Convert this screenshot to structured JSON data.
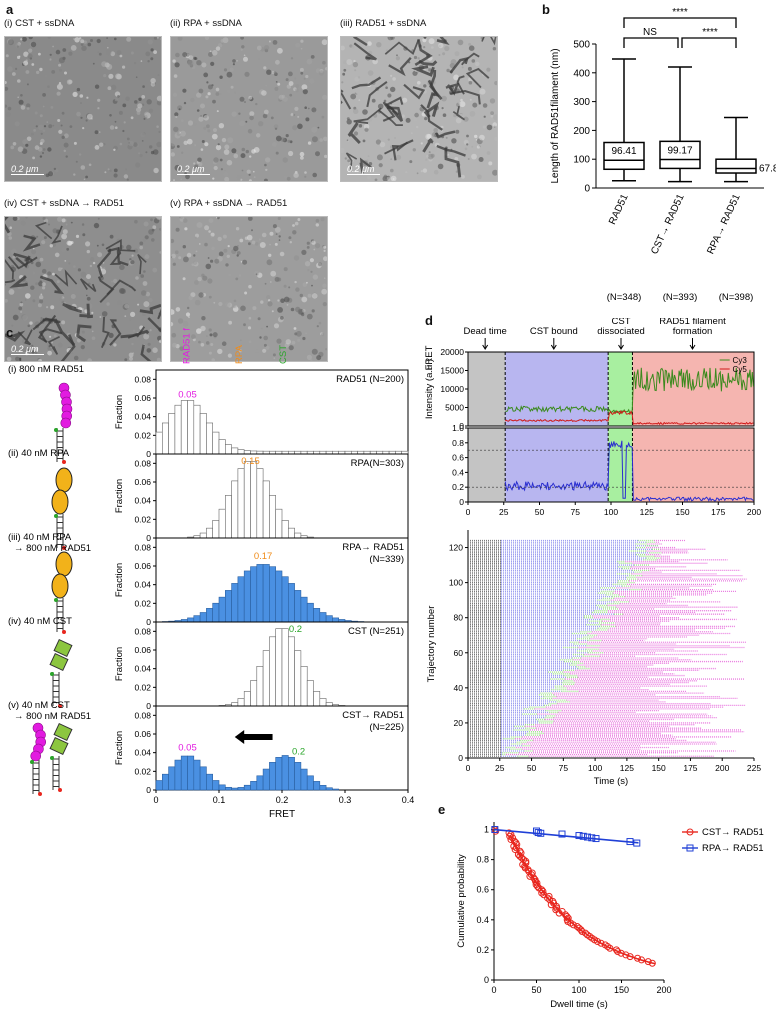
{
  "panel_labels": {
    "a": "a",
    "b": "b",
    "c": "c",
    "d": "d",
    "e": "e"
  },
  "micrographs": [
    {
      "label": "(i) CST + ssDNA",
      "scale": "0.2 μm",
      "tone": "#8a8a8a",
      "filaments": false
    },
    {
      "label": "(ii) RPA + ssDNA",
      "scale": "0.2 μm",
      "tone": "#9a9a9a",
      "filaments": false
    },
    {
      "label": "(iii) RAD51 + ssDNA",
      "scale": "0.2 μm",
      "tone": "#b4b4b4",
      "filaments": true
    },
    {
      "label": "(iv) CST + ssDNA → RAD51",
      "scale": "0.2 μm",
      "tone": "#8e8e8e",
      "filaments": true
    },
    {
      "label": "(v) RPA + ssDNA → RAD51",
      "scale": "",
      "tone": "#9d9d9d",
      "filaments": false
    }
  ],
  "panel_b": {
    "chart_data": {
      "type": "box",
      "ylabel": "Length of RAD51filament (nm)",
      "ylim": [
        0,
        500
      ],
      "yticks": [
        0,
        100,
        200,
        300,
        400,
        500
      ],
      "categories": [
        "RAD51",
        "CST→ RAD51",
        "RPA→ RAD51"
      ],
      "counts": [
        "(N=348)",
        "(N=393)",
        "(N=398)"
      ],
      "boxes": [
        {
          "min": 25,
          "q1": 65,
          "median": 96.41,
          "q3": 158,
          "max": 448,
          "label": "96.41"
        },
        {
          "min": 22,
          "q1": 68,
          "median": 99.17,
          "q3": 162,
          "max": 420,
          "label": "99.17"
        },
        {
          "min": 22,
          "q1": 52,
          "median": 67.83,
          "q3": 100,
          "max": 245,
          "label": "67.83"
        }
      ],
      "significance": [
        {
          "from": 0,
          "to": 2,
          "label": "****"
        },
        {
          "from": 0,
          "to": 1,
          "label": "NS"
        },
        {
          "from": 1,
          "to": 2,
          "label": "****"
        }
      ]
    }
  },
  "panel_c": {
    "legend": {
      "rad51": "RAD51 filament",
      "rpa": "RPA",
      "cst": "CST"
    },
    "conditions": [
      "(i) 800 nM RAD51",
      "(ii) 40 nM RPA",
      "(iii) 40 nM RPA → 800 nM RAD51",
      "(iv) 40 nM CST",
      "(v) 40 nM CST → 800 nM RAD51"
    ],
    "chart_data": {
      "type": "histogram",
      "xlabel": "FRET",
      "ylabel": "Fraction",
      "xlim": [
        0,
        0.4
      ],
      "xticks": [
        0,
        0.1,
        0.2,
        0.3,
        0.4
      ],
      "yticks": [
        "0",
        "0.02",
        "0.04",
        "0.06",
        "0.08"
      ],
      "ylim": [
        0,
        0.09
      ],
      "rows": [
        {
          "title": "RAD51 (N=200)",
          "fill": "none",
          "peaks": [
            {
              "mu": 0.05,
              "sd": 0.032,
              "amp": 0.055
            }
          ],
          "tail": 0.003,
          "annotations": [
            {
              "text": "0.05",
              "x": 0.05,
              "color": "#e21be0"
            }
          ]
        },
        {
          "title": "RPA(N=303)",
          "fill": "none",
          "peaks": [
            {
              "mu": 0.15,
              "sd": 0.032,
              "amp": 0.083
            }
          ],
          "tail": 0,
          "annotations": [
            {
              "text": "0.15",
              "x": 0.15,
              "color": "#f08c1a"
            }
          ]
        },
        {
          "title": "RPA→ RAD51 (N=339)",
          "fill": "#4a90e2",
          "peaks": [
            {
              "mu": 0.17,
              "sd": 0.05,
              "amp": 0.062
            }
          ],
          "tail": 0,
          "annotations": [
            {
              "text": "0.17",
              "x": 0.17,
              "color": "#f08c1a"
            }
          ]
        },
        {
          "title": "CST (N=251)",
          "fill": "none",
          "peaks": [
            {
              "mu": 0.2,
              "sd": 0.03,
              "amp": 0.084
            }
          ],
          "tail": 0,
          "annotations": [
            {
              "text": "0.2",
              "x": 0.215,
              "color": "#2aa52a"
            }
          ]
        },
        {
          "title": "CST→ RAD51 (N=225)",
          "fill": "#4a90e2",
          "peaks": [
            {
              "mu": 0.05,
              "sd": 0.028,
              "amp": 0.037
            },
            {
              "mu": 0.205,
              "sd": 0.03,
              "amp": 0.037
            }
          ],
          "tail": 0,
          "annotations": [
            {
              "text": "0.05",
              "x": 0.05,
              "color": "#e21be0"
            },
            {
              "text": "0.2",
              "x": 0.22,
              "color": "#2aa52a"
            }
          ]
        }
      ]
    }
  },
  "panel_d": {
    "phase_labels": [
      "Dead time",
      "CST bound",
      "CST dissociated",
      "RAD51 filament formation"
    ],
    "legend": [
      "Cy3",
      "Cy5"
    ],
    "intensity": {
      "ylabel": "Intensity (a.u.)",
      "yticks": [
        "0",
        "5000",
        "10000",
        "15000",
        "20000"
      ],
      "ylim": [
        0,
        20000
      ]
    },
    "fret": {
      "ylabel": "FRET",
      "yticks": [
        "0",
        "0.2",
        "0.4",
        "0.6",
        "0.8",
        "1.0"
      ]
    },
    "trace_xticks": [
      "0",
      "25",
      "50",
      "75",
      "100",
      "125",
      "150",
      "175",
      "200"
    ],
    "phases": {
      "dead_end": 26,
      "cst_end": 98,
      "diss_end": 115,
      "x_max": 200
    },
    "raster": {
      "ylabel": "Trajectory number",
      "xlabel": "Time (s)",
      "xticks": [
        "0",
        "25",
        "50",
        "75",
        "100",
        "125",
        "150",
        "175",
        "200",
        "225"
      ],
      "yticks": [
        "0",
        "20",
        "40",
        "60",
        "80",
        "100",
        "120"
      ],
      "n": 124,
      "x_max": 225
    }
  },
  "panel_e": {
    "chart_data": {
      "type": "scatter+line",
      "xlabel": "Dwell time (s)",
      "ylabel": "Cumulative probability",
      "xlim": [
        0,
        200
      ],
      "ylim": [
        0,
        1.05
      ],
      "xticks": [
        0,
        50,
        100,
        150,
        200
      ],
      "yticks": [
        "0",
        "0.2",
        "0.4",
        "0.6",
        "0.8",
        "1"
      ],
      "series": [
        {
          "name": "CST→ RAD51",
          "color": "#e8261e",
          "marker": "circle",
          "fit_tau": 78,
          "fit_offset": 16
        },
        {
          "name": "RPA→ RAD51",
          "color": "#1f3fd6",
          "marker": "square",
          "points": [
            [
              50,
              0.99
            ],
            [
              52,
              0.98
            ],
            [
              55,
              0.975
            ],
            [
              80,
              0.97
            ],
            [
              100,
              0.96
            ],
            [
              105,
              0.955
            ],
            [
              110,
              0.95
            ],
            [
              115,
              0.945
            ],
            [
              120,
              0.94
            ],
            [
              160,
              0.92
            ],
            [
              168,
              0.91
            ],
            [
              1,
              1
            ]
          ],
          "fit_slope": -0.00052
        }
      ]
    }
  }
}
